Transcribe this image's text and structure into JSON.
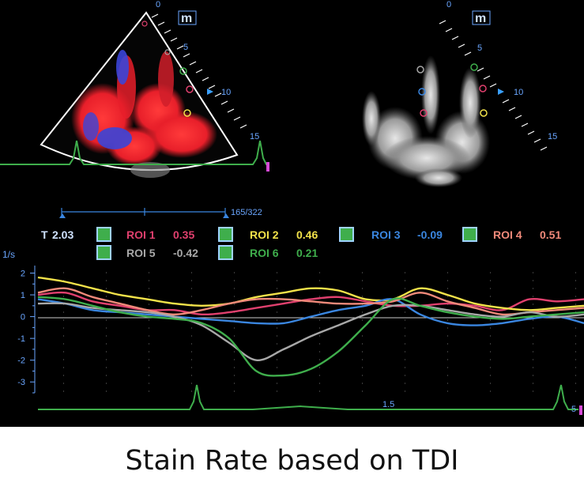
{
  "caption": "Stain Rate based on TDI",
  "left_view": {
    "mode_icon": "m",
    "depth_marks": [
      "0",
      "5",
      "10",
      "15"
    ]
  },
  "right_view": {
    "mode_icon": "m",
    "depth_marks": [
      "0",
      "5",
      "10",
      "15"
    ]
  },
  "frame_counter": "165/322",
  "timeline": {
    "t_label": "T",
    "t_value": "2.03",
    "rois": [
      {
        "label": "ROI 1",
        "value": "0.35",
        "color": "#e0406e"
      },
      {
        "label": "ROI 2",
        "value": "0.46",
        "color": "#f2e24a"
      },
      {
        "label": "ROI 3",
        "value": "-0.09",
        "color": "#3a86e0"
      },
      {
        "label": "ROI 4",
        "value": "0.51",
        "color": "#f08a7a"
      },
      {
        "label": "ROI 5",
        "value": "-0.42",
        "color": "#a8a8a8"
      },
      {
        "label": "ROI 6",
        "value": "0.21",
        "color": "#3fae4c"
      }
    ]
  },
  "chart_data": {
    "type": "line",
    "ylabel": "1/s",
    "ylim": [
      -3.5,
      2.2
    ],
    "yticks": [
      "2",
      "1",
      "0",
      "-1",
      "-2",
      "-3"
    ],
    "x_mark": "1.5",
    "end_mark": "5",
    "x": [
      0,
      0.05,
      0.1,
      0.15,
      0.2,
      0.25,
      0.3,
      0.35,
      0.4,
      0.45,
      0.5,
      0.55,
      0.6,
      0.65,
      0.7,
      0.75,
      0.8,
      0.85,
      0.9,
      0.95,
      1.0
    ],
    "series": [
      {
        "name": "ROI 1",
        "color": "#e0406e",
        "values": [
          1.0,
          1.1,
          0.7,
          0.5,
          0.3,
          0.3,
          0.1,
          0.2,
          0.4,
          0.6,
          0.8,
          0.9,
          0.7,
          0.5,
          0.5,
          0.6,
          0.5,
          0.3,
          0.8,
          0.7,
          0.8
        ]
      },
      {
        "name": "ROI 2",
        "color": "#f2e24a",
        "values": [
          1.8,
          1.6,
          1.3,
          1.0,
          0.8,
          0.6,
          0.5,
          0.6,
          0.9,
          1.1,
          1.3,
          1.2,
          0.8,
          0.8,
          1.3,
          1.0,
          0.6,
          0.4,
          0.3,
          0.4,
          0.5
        ]
      },
      {
        "name": "ROI 3",
        "color": "#3a86e0",
        "values": [
          0.8,
          0.6,
          0.3,
          0.2,
          0.1,
          0.0,
          -0.1,
          -0.2,
          -0.3,
          -0.3,
          0.0,
          0.3,
          0.5,
          0.8,
          0.1,
          -0.3,
          -0.4,
          -0.3,
          -0.1,
          0.0,
          -0.3
        ]
      },
      {
        "name": "ROI 4",
        "color": "#f08a7a",
        "values": [
          1.1,
          1.3,
          0.9,
          0.6,
          0.3,
          0.1,
          0.3,
          0.6,
          0.8,
          0.8,
          0.7,
          0.6,
          0.6,
          0.7,
          1.1,
          0.7,
          0.4,
          0.1,
          0.2,
          0.3,
          0.4
        ]
      },
      {
        "name": "ROI 5",
        "color": "#a8a8a8",
        "values": [
          0.6,
          0.6,
          0.4,
          0.3,
          0.2,
          0.0,
          -0.4,
          -1.2,
          -2.0,
          -1.5,
          -0.9,
          -0.4,
          0.1,
          0.5,
          0.5,
          0.3,
          0.1,
          0.0,
          0.2,
          0.0,
          0.1
        ]
      },
      {
        "name": "ROI 6",
        "color": "#3fae4c",
        "values": [
          0.9,
          0.8,
          0.5,
          0.2,
          0.0,
          -0.1,
          -0.3,
          -1.0,
          -2.5,
          -2.7,
          -2.4,
          -1.6,
          -0.4,
          0.8,
          0.5,
          0.2,
          0.0,
          -0.1,
          0.0,
          0.1,
          0.2
        ]
      }
    ]
  }
}
